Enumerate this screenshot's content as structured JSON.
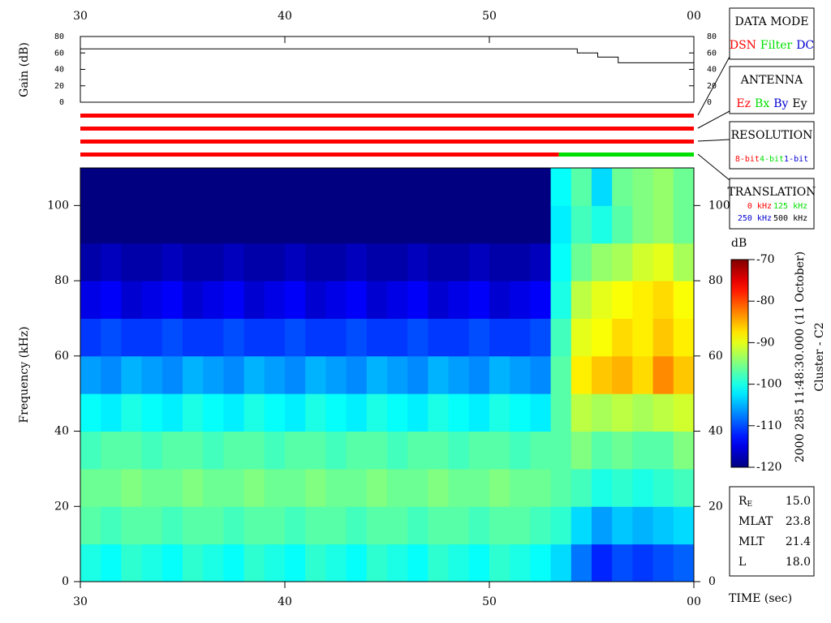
{
  "chart_data": [
    {
      "type": "line",
      "ylabel": "Gain (dB)",
      "step": "post",
      "color": "#000000",
      "x": [
        30,
        54.3,
        55.3,
        56.3,
        60
      ],
      "values": [
        65,
        60,
        55,
        48,
        48
      ],
      "xlim": [
        30,
        60
      ],
      "xticks": [
        30,
        40,
        50,
        {
          "value": 60,
          "label": "00"
        }
      ],
      "ylim": [
        0,
        80
      ],
      "yticks": [
        0,
        20,
        40,
        60,
        80
      ]
    },
    {
      "type": "heatmap",
      "ylabel": "Frequency (kHz)",
      "xlabel": "TIME (sec)",
      "title": "2000 285 11:48:30.000 (11 October)",
      "subtitle": "Cluster - C2",
      "colormap": "jet",
      "background": "#000050",
      "xbins": [
        30,
        31,
        32,
        33,
        34,
        35,
        36,
        37,
        38,
        39,
        40,
        41,
        42,
        43,
        44,
        45,
        46,
        47,
        48,
        49,
        50,
        51,
        52,
        53,
        54,
        55,
        56,
        57,
        58,
        59,
        60
      ],
      "ybins": [
        0,
        10,
        20,
        30,
        40,
        50,
        60,
        70,
        80,
        90,
        100,
        110
      ],
      "values": [
        [
          -100,
          -97,
          -96,
          -98,
          -101,
          -106,
          -111,
          -115,
          -118,
          -120,
          -120
        ],
        [
          -101,
          -98,
          -96,
          -97,
          -102,
          -107,
          -110,
          -114,
          -117,
          -120,
          -120
        ],
        [
          -99,
          -97,
          -95,
          -97,
          -100,
          -105,
          -111,
          -116,
          -118,
          -120,
          -120
        ],
        [
          -100,
          -97,
          -96,
          -98,
          -101,
          -106,
          -111,
          -115,
          -118,
          -120,
          -120
        ],
        [
          -101,
          -98,
          -96,
          -97,
          -102,
          -107,
          -110,
          -114,
          -117,
          -120,
          -120
        ],
        [
          -99,
          -97,
          -95,
          -97,
          -100,
          -105,
          -111,
          -116,
          -118,
          -120,
          -120
        ],
        [
          -100,
          -97,
          -96,
          -98,
          -101,
          -106,
          -111,
          -115,
          -118,
          -120,
          -120
        ],
        [
          -101,
          -98,
          -96,
          -97,
          -102,
          -107,
          -110,
          -114,
          -117,
          -120,
          -120
        ],
        [
          -99,
          -97,
          -95,
          -97,
          -100,
          -105,
          -111,
          -116,
          -118,
          -120,
          -120
        ],
        [
          -100,
          -97,
          -96,
          -98,
          -101,
          -106,
          -111,
          -115,
          -118,
          -120,
          -120
        ],
        [
          -101,
          -98,
          -96,
          -97,
          -102,
          -107,
          -110,
          -114,
          -117,
          -120,
          -120
        ],
        [
          -99,
          -97,
          -95,
          -97,
          -100,
          -105,
          -111,
          -116,
          -118,
          -120,
          -120
        ],
        [
          -100,
          -97,
          -96,
          -98,
          -101,
          -106,
          -111,
          -115,
          -118,
          -120,
          -120
        ],
        [
          -101,
          -98,
          -96,
          -97,
          -102,
          -107,
          -110,
          -114,
          -117,
          -120,
          -120
        ],
        [
          -99,
          -97,
          -95,
          -97,
          -100,
          -105,
          -111,
          -116,
          -118,
          -120,
          -120
        ],
        [
          -100,
          -97,
          -96,
          -98,
          -101,
          -106,
          -111,
          -115,
          -118,
          -120,
          -120
        ],
        [
          -101,
          -98,
          -96,
          -97,
          -102,
          -107,
          -110,
          -114,
          -117,
          -120,
          -120
        ],
        [
          -99,
          -97,
          -95,
          -97,
          -100,
          -105,
          -111,
          -116,
          -118,
          -120,
          -120
        ],
        [
          -100,
          -97,
          -96,
          -98,
          -101,
          -106,
          -111,
          -115,
          -118,
          -120,
          -120
        ],
        [
          -101,
          -98,
          -96,
          -97,
          -102,
          -107,
          -110,
          -114,
          -117,
          -120,
          -120
        ],
        [
          -99,
          -97,
          -95,
          -97,
          -100,
          -105,
          -111,
          -116,
          -118,
          -120,
          -120
        ],
        [
          -100,
          -97,
          -96,
          -98,
          -101,
          -106,
          -111,
          -115,
          -118,
          -120,
          -120
        ],
        [
          -101,
          -98,
          -96,
          -97,
          -102,
          -107,
          -110,
          -114,
          -117,
          -120,
          -120
        ],
        [
          -103,
          -99,
          -97,
          -97,
          -97,
          -97,
          -98,
          -100,
          -101,
          -102,
          -101
        ],
        [
          -108,
          -103,
          -98,
          -95,
          -92,
          -88,
          -90,
          -92,
          -96,
          -98,
          -97
        ],
        [
          -112,
          -106,
          -100,
          -97,
          -93,
          -86,
          -89,
          -90,
          -94,
          -100,
          -103
        ],
        [
          -110,
          -104,
          -99,
          -96,
          -92,
          -85,
          -87,
          -89,
          -93,
          -97,
          -96
        ],
        [
          -111,
          -105,
          -100,
          -97,
          -93,
          -87,
          -88,
          -88,
          -91,
          -95,
          -95
        ],
        [
          -110,
          -104,
          -99,
          -97,
          -92,
          -83,
          -86,
          -87,
          -90,
          -94,
          -94
        ],
        [
          -109,
          -103,
          -98,
          -95,
          -91,
          -86,
          -88,
          -89,
          -93,
          -96,
          -96
        ]
      ],
      "xlim": [
        30,
        60
      ],
      "xticks": [
        30,
        40,
        50,
        {
          "value": 60,
          "label": "00"
        }
      ],
      "ylim": [
        0,
        110
      ],
      "yticks": [
        0,
        20,
        40,
        60,
        80,
        100
      ],
      "zlabel": "dB",
      "zlim": [
        -120,
        -70
      ],
      "zticks": [
        -70,
        -80,
        -90,
        -100,
        -110,
        -120
      ]
    }
  ],
  "status_bars": [
    [
      {
        "start": 30,
        "end": 60,
        "color": "#ff0000"
      }
    ],
    [
      {
        "start": 30,
        "end": 60,
        "color": "#ff0000"
      }
    ],
    [
      {
        "start": 30,
        "end": 60,
        "color": "#ff0000"
      }
    ],
    [
      {
        "start": 30,
        "end": 53.4,
        "color": "#ff0000"
      },
      {
        "start": 53.4,
        "end": 60,
        "color": "#00e000"
      }
    ]
  ],
  "boxes": [
    {
      "title": "DATA MODE",
      "items": [
        {
          "text": "DSN",
          "color": "#ff0000"
        },
        {
          "text": "Filter",
          "color": "#00e000"
        },
        {
          "text": "DC",
          "color": "#0000d0"
        }
      ]
    },
    {
      "title": "ANTENNA",
      "items": [
        {
          "text": "Ez",
          "color": "#ff0000"
        },
        {
          "text": "Bx",
          "color": "#00e000"
        },
        {
          "text": "By",
          "color": "#0000d0"
        },
        {
          "text": "Ey",
          "color": "#000000"
        }
      ]
    },
    {
      "title": "RESOLUTION",
      "items": [
        {
          "text": "8-bit",
          "color": "#ff0000"
        },
        {
          "text": "4-bit",
          "color": "#00e000"
        },
        {
          "text": "1-bit",
          "color": "#0000d0"
        }
      ]
    },
    {
      "title": "TRANSLATION",
      "items": [
        {
          "text": "0 kHz",
          "color": "#ff0000"
        },
        {
          "text": "125 kHz",
          "color": "#00e000"
        },
        {
          "text": "250 kHz",
          "color": "#0000d0"
        },
        {
          "text": "500 kHz",
          "color": "#000000"
        }
      ]
    }
  ],
  "info": [
    {
      "label": "R",
      "sub": "E",
      "value": "15.0"
    },
    {
      "label": "MLAT",
      "value": "23.8"
    },
    {
      "label": "MLT",
      "value": "21.4"
    },
    {
      "label": "L",
      "value": "18.0"
    }
  ]
}
